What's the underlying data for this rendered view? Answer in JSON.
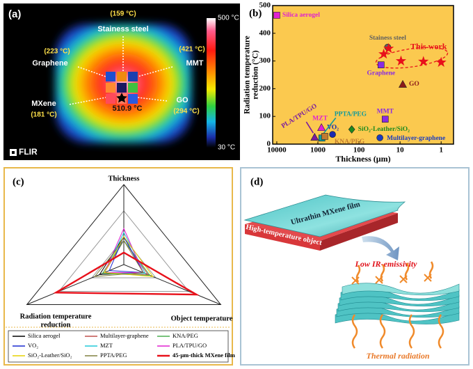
{
  "panel_a": {
    "label": "(a)",
    "samples": [
      {
        "name": "Stainess steel",
        "temp": "(159 °C)"
      },
      {
        "name": "Graphene",
        "temp": "(223 °C)"
      },
      {
        "name": "MMT",
        "temp": "(421 °C)"
      },
      {
        "name": "MXene",
        "temp": "(181 °C)"
      },
      {
        "name": "GO",
        "temp": "(294 °C)"
      }
    ],
    "center_temp": "510.9 °C",
    "colorbar": {
      "max": "500 °C",
      "min": "30 °C"
    },
    "logo": "FLIR"
  },
  "chart_data": [
    {
      "type": "scatter",
      "panel_label": "(b)",
      "xlabel": "Thickness (μm)",
      "ylabel": [
        "Radiation temperature",
        "reduction (°C)"
      ],
      "xscale": "log",
      "xlim": [
        12600,
        0.5
      ],
      "xticks": [
        10000,
        1000,
        100,
        10,
        1
      ],
      "ylim": [
        0,
        500
      ],
      "yticks": [
        0,
        100,
        200,
        300,
        400,
        500
      ],
      "series": [
        {
          "name": "Silica aerogel",
          "color": "#e020d0",
          "marker": "square",
          "x": [
            10000
          ],
          "values": [
            465
          ]
        },
        {
          "name": "Stainess steel",
          "color": "#606060",
          "marker": "circle",
          "x": [
            20
          ],
          "values": [
            350
          ]
        },
        {
          "name": "Graphene",
          "color": "#8a2be2",
          "marker": "square",
          "x": [
            29
          ],
          "values": [
            286
          ]
        },
        {
          "name": "GO",
          "color": "#8b1a1a",
          "marker": "triangle",
          "x": [
            8.6
          ],
          "values": [
            216
          ]
        },
        {
          "name": "MMT",
          "color": "#8a2be2",
          "marker": "square",
          "x": [
            23
          ],
          "values": [
            90
          ]
        },
        {
          "name": "Multilayer-graphene",
          "color": "#1a3cc0",
          "marker": "circle",
          "x": [
            31
          ],
          "values": [
            23
          ]
        },
        {
          "name": "SiO₂-Leather/SiO₂",
          "color": "#1e8a1e",
          "marker": "diamond",
          "x": [
            150
          ],
          "values": [
            53
          ]
        },
        {
          "name": "VO₂",
          "color": "#1a2ab0",
          "marker": "circle",
          "x": [
            440
          ],
          "values": [
            35
          ]
        },
        {
          "name": "MZT",
          "color": "#e020d0",
          "marker": "triangle",
          "x": [
            820
          ],
          "values": [
            60
          ]
        },
        {
          "name": "PPTA/PEG",
          "color": "#139a9a",
          "marker": "square",
          "x": [
            800
          ],
          "values": [
            22
          ]
        },
        {
          "name": "KNA/PEG",
          "color": "#c07a30",
          "marker": "square",
          "x": [
            680
          ],
          "values": [
            28
          ]
        },
        {
          "name": "PLA/TPU/GO",
          "color": "#7a1aa0",
          "marker": "triangle",
          "x": [
            1200
          ],
          "values": [
            25
          ]
        },
        {
          "name": "This work",
          "color": "#e8101a",
          "marker": "star",
          "x": [
            25,
            19,
            9.5,
            2.7,
            1
          ],
          "values": [
            325,
            345,
            300,
            298,
            295
          ]
        }
      ]
    },
    {
      "type": "radar",
      "panel_label": "(c)",
      "axes": [
        "Thickness",
        "Object temperature",
        [
          "Radiation temperature",
          "reduction"
        ]
      ],
      "rlim": [
        0,
        1
      ],
      "rticks": [
        0.33,
        0.67,
        1
      ],
      "series": [
        {
          "name": "Silica aerogel",
          "color": "#000000",
          "values": [
            0.35,
            0.2,
            0.25
          ]
        },
        {
          "name": "Multilayer-graphene",
          "color": "#c0504d",
          "values": [
            0.3,
            0.25,
            0.2
          ]
        },
        {
          "name": "KNA/PEG",
          "color": "#4caf50",
          "values": [
            0.3,
            0.27,
            0.22
          ]
        },
        {
          "name": "VO₂",
          "color": "#1a2ad0",
          "values": [
            0.35,
            0.2,
            0.15
          ]
        },
        {
          "name": "MZT",
          "color": "#20c8d8",
          "values": [
            0.4,
            0.22,
            0.2
          ]
        },
        {
          "name": "PLA/TPU/GO",
          "color": "#e020d0",
          "values": [
            0.45,
            0.2,
            0.2
          ]
        },
        {
          "name": "SiO₂-Leather/SiO₂",
          "color": "#e6d200",
          "values": [
            0.35,
            0.3,
            0.2
          ]
        },
        {
          "name": "PPTA/PEG",
          "color": "#808040",
          "values": [
            0.3,
            0.2,
            0.3
          ]
        },
        {
          "name": "45-μm-thick MXene film",
          "color": "#e8101a",
          "values": [
            0.15,
            0.75,
            0.7
          ]
        }
      ]
    }
  ],
  "panel_d": {
    "label": "(d)",
    "film_label": "Ultrathin MXene film",
    "object_label": "High-temperature object",
    "emissivity_label": "Low IR-emissivity",
    "radiation_label": "Thermal radiation"
  }
}
